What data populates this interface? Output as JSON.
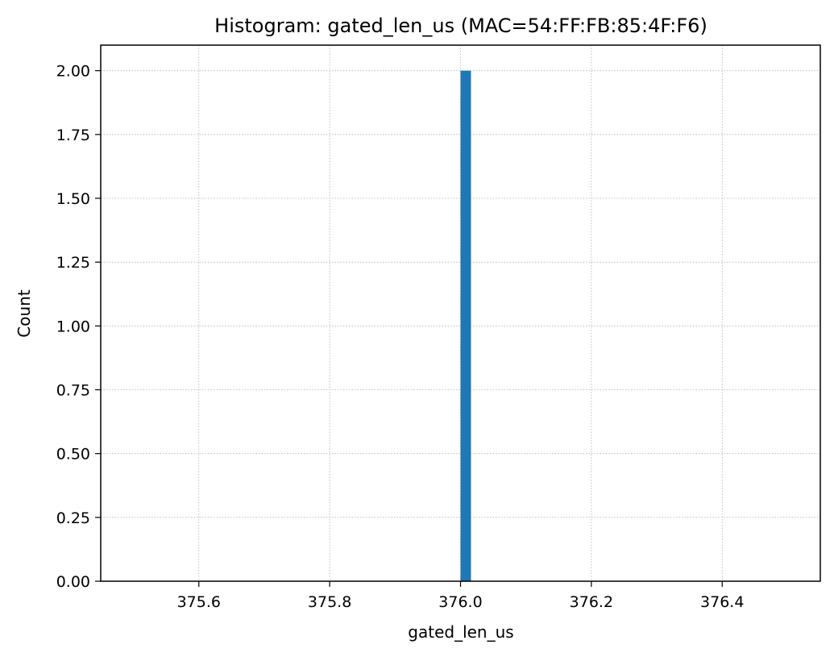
{
  "chart_data": {
    "type": "bar",
    "title": "Histogram: gated_len_us (MAC=54:FF:FB:85:4F:F6)",
    "xlabel": "gated_len_us",
    "ylabel": "Count",
    "xlim": [
      375.45,
      376.55
    ],
    "ylim": [
      0,
      2.1
    ],
    "x_ticks": [
      375.6,
      375.8,
      376.0,
      376.2,
      376.4
    ],
    "x_tick_labels": [
      "375.6",
      "375.8",
      "376.0",
      "376.2",
      "376.4"
    ],
    "y_ticks": [
      0,
      0.25,
      0.5,
      0.75,
      1.0,
      1.25,
      1.5,
      1.75,
      2.0
    ],
    "y_tick_labels": [
      "0.00",
      "0.25",
      "0.50",
      "0.75",
      "1.00",
      "1.25",
      "1.50",
      "1.75",
      "2.00"
    ],
    "bins": [
      {
        "x0": 376.0,
        "x1": 376.016,
        "count": 2
      }
    ],
    "bar_color": "#1f77b4",
    "grid": true,
    "legend": "none"
  }
}
